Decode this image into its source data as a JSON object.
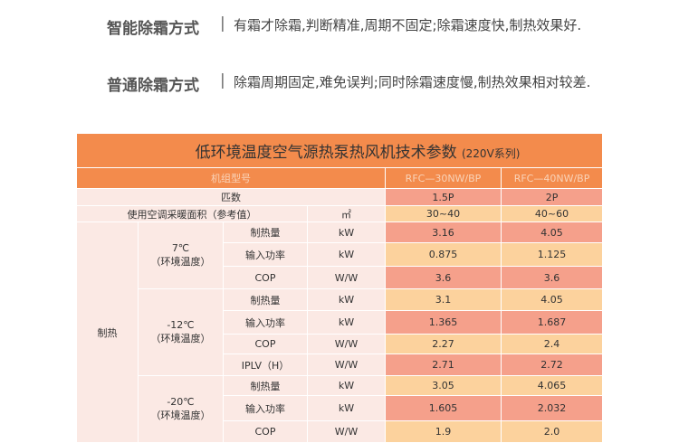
{
  "modes": [
    {
      "name": "智能除霜方式",
      "separator": "|",
      "desc": "有霜才除霜,判断精准,周期不固定;除霜速度快,制热效果好."
    },
    {
      "name": "普通除霜方式",
      "separator": "|",
      "desc": "除霜周期固定,难免误判;同时除霜速度慢,制热效果相对较差."
    }
  ],
  "table": {
    "title": "低环境温度空气源热泵热风机技术参数",
    "subtitle": "(220V系列)",
    "model_label": "机组型号",
    "models": [
      "RFC—30NW/BP",
      "RFC—40NW/BP"
    ],
    "hp_label": "匹数",
    "hp": [
      "1.5P",
      "2P"
    ],
    "area_label": "使用空调采暖面积（参考值）",
    "area_unit": "㎡",
    "area": [
      "30~40",
      "40~60"
    ],
    "section": "制热",
    "groups": [
      {
        "temp": "7℃",
        "temp_note": "（环境温度）",
        "rows": [
          {
            "item": "制热量",
            "unit": "kW",
            "v": [
              "3.16",
              "4.05"
            ]
          },
          {
            "item": "输入功率",
            "unit": "kW",
            "v": [
              "0.875",
              "1.125"
            ]
          },
          {
            "item": "COP",
            "unit": "W/W",
            "v": [
              "3.6",
              "3.6"
            ]
          }
        ]
      },
      {
        "temp": "-12℃",
        "temp_note": "（环境温度）",
        "rows": [
          {
            "item": "制热量",
            "unit": "kW",
            "v": [
              "3.1",
              "4.05"
            ]
          },
          {
            "item": "输入功率",
            "unit": "kW",
            "v": [
              "1.365",
              "1.687"
            ]
          },
          {
            "item": "COP",
            "unit": "W/W",
            "v": [
              "2.27",
              "2.4"
            ]
          },
          {
            "item": "IPLV（H）",
            "unit": "W/W",
            "v": [
              "2.71",
              "2.72"
            ]
          }
        ]
      },
      {
        "temp": "-20℃",
        "temp_note": "（环境温度）",
        "rows": [
          {
            "item": "制热量",
            "unit": "kW",
            "v": [
              "3.05",
              "4.065"
            ]
          },
          {
            "item": "输入功率",
            "unit": "kW",
            "v": [
              "1.605",
              "2.032"
            ]
          },
          {
            "item": "COP",
            "unit": "W/W",
            "v": [
              "1.9",
              "2.0"
            ]
          }
        ]
      }
    ]
  },
  "colors": {
    "header": "#f38b4c",
    "salmon": "#f5a08b",
    "peach": "#fcd29d",
    "label_bg": "#fbe9e4"
  }
}
